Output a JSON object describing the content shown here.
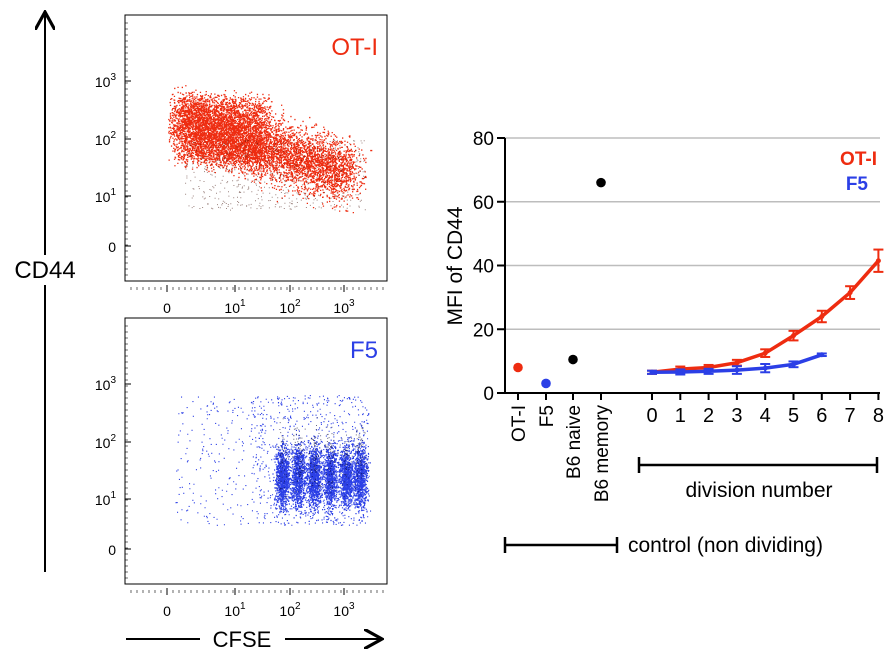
{
  "figure": {
    "left_axis_label": "CD44",
    "bottom_axis_label": "CFSE",
    "colors": {
      "otI": "#ee2c10",
      "f5": "#2b3fe6",
      "black": "#000000",
      "grid": "#bdbdbd"
    }
  },
  "flow_panels": [
    {
      "label": "OT-I",
      "color": "#ee2c10",
      "y_ticks": [
        {
          "base": "10",
          "exp": "3"
        },
        {
          "base": "10",
          "exp": "2"
        },
        {
          "base": "10",
          "exp": "1"
        },
        {
          "base": "0",
          "exp": ""
        }
      ],
      "x_ticks": []
    },
    {
      "label": "F5",
      "color": "#2b3fe6",
      "y_ticks": [
        {
          "base": "10",
          "exp": "3"
        },
        {
          "base": "10",
          "exp": "2"
        },
        {
          "base": "10",
          "exp": "1"
        },
        {
          "base": "0",
          "exp": ""
        }
      ],
      "x_ticks": [
        {
          "base": "0",
          "exp": ""
        },
        {
          "base": "10",
          "exp": "1"
        },
        {
          "base": "10",
          "exp": "2"
        },
        {
          "base": "10",
          "exp": "3"
        }
      ]
    }
  ],
  "chart_data": {
    "type": "line",
    "ylabel": "MFI of CD44",
    "ylim": [
      0,
      80
    ],
    "yticks": [
      0,
      20,
      40,
      60,
      80
    ],
    "grid": true,
    "legend": [
      "OT-I",
      "F5"
    ],
    "legend_position": "top-right",
    "controls": {
      "categories": [
        "OT-I",
        "F5",
        "B6 naive",
        "B6 memory"
      ],
      "values": [
        8,
        3,
        10.5,
        66
      ],
      "colors": [
        "#ee2c10",
        "#2b3fe6",
        "#000000",
        "#000000"
      ],
      "group_label": "control (non dividing)"
    },
    "division": {
      "x": [
        0,
        1,
        2,
        3,
        4,
        5,
        6,
        7,
        8
      ],
      "xlabel": "division number",
      "series": [
        {
          "name": "OT-I",
          "color": "#ee2c10",
          "values": [
            6.5,
            7.5,
            8,
            9.5,
            12.5,
            18,
            24,
            31.5,
            41.5
          ],
          "errors": [
            0.5,
            0.8,
            0.8,
            0.9,
            1.2,
            1.5,
            1.8,
            2,
            3.5
          ]
        },
        {
          "name": "F5",
          "color": "#2b3fe6",
          "values": [
            6.5,
            6.6,
            6.8,
            7.2,
            7.8,
            9,
            12
          ],
          "errors": [
            0.5,
            0.8,
            0.8,
            1.2,
            1.3,
            0.9,
            0.4
          ]
        }
      ]
    }
  }
}
